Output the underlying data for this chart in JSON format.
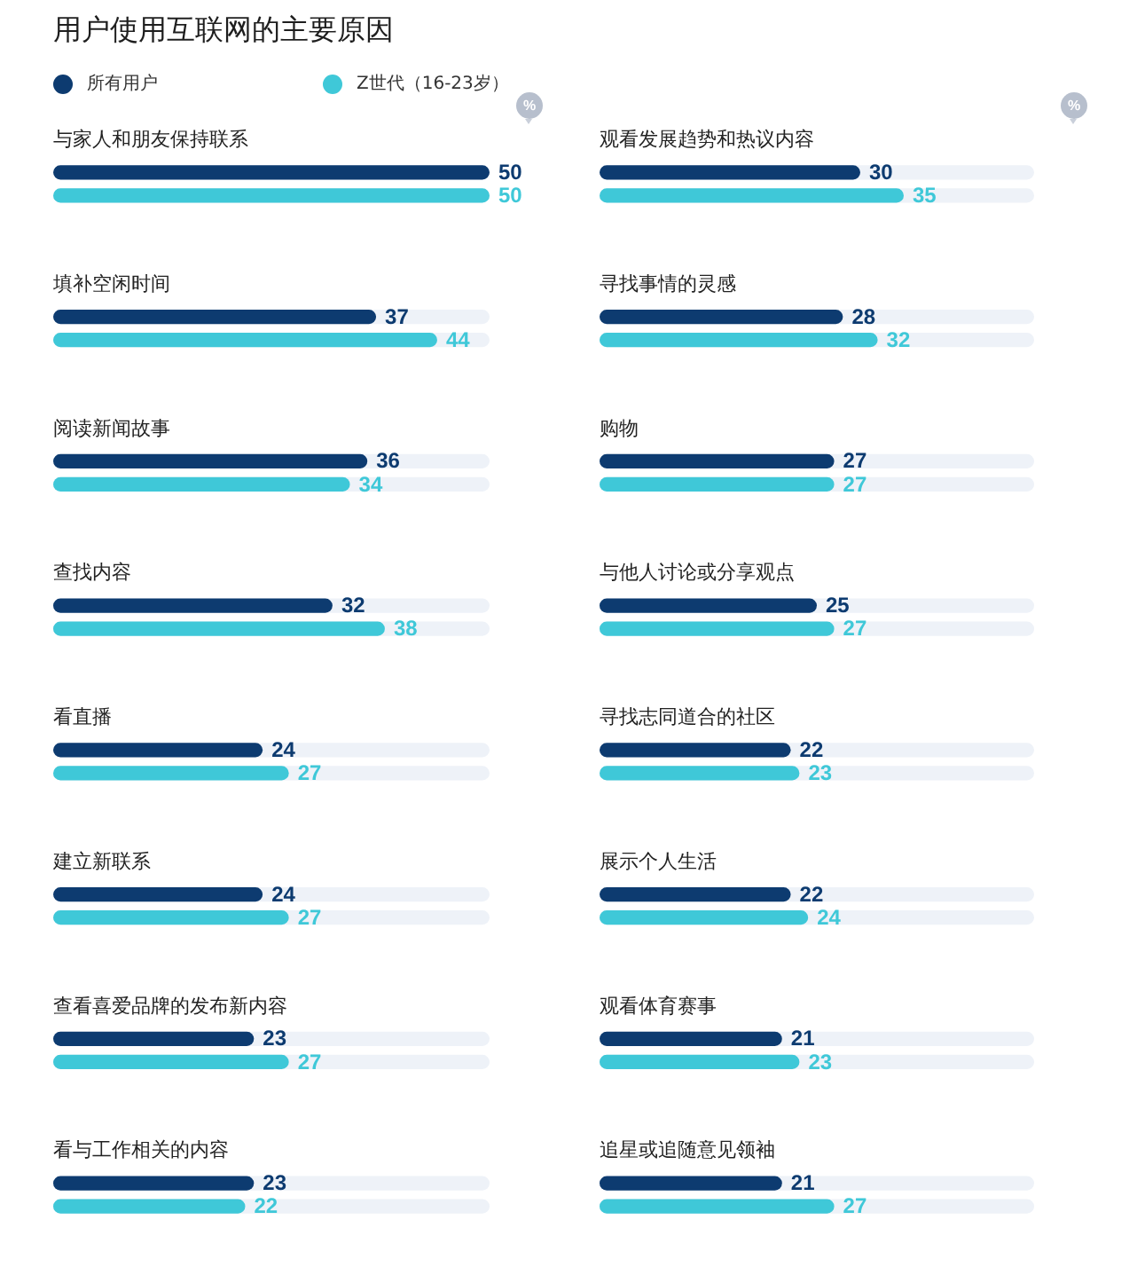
{
  "chart_data": [
    {
      "type": "bar",
      "orientation": "horizontal",
      "title": "用户使用互联网的主要原因",
      "categories": [
        "与家人和朋友保持联系",
        "填补空闲时间",
        "阅读新闻故事",
        "查找内容",
        "看直播",
        "建立新联系",
        "查看喜爱品牌的发布新内容",
        "看与工作相关的内容"
      ],
      "series": [
        {
          "name": "所有用户",
          "color": "#0d3b70",
          "values": [
            50,
            37,
            36,
            32,
            24,
            24,
            23,
            23
          ]
        },
        {
          "name": "Z世代（16-23岁）",
          "color": "#3fc8d8",
          "values": [
            50,
            44,
            34,
            38,
            27,
            27,
            27,
            22
          ]
        }
      ],
      "xlim": [
        0,
        50
      ],
      "data_labels": true,
      "legend": "top left",
      "tick_labels": "y",
      "annotations": [
        "%"
      ]
    },
    {
      "type": "bar",
      "orientation": "horizontal",
      "categories": [
        "观看发展趋势和热议内容",
        "寻找事情的灵感",
        "购物",
        "与他人讨论或分享观点",
        "寻找志同道合的社区",
        "展示个人生活",
        "观看体育赛事",
        "追星或追随意见领袖"
      ],
      "series": [
        {
          "color": "#0d3b70",
          "values": [
            30,
            28,
            27,
            25,
            22,
            22,
            21,
            21
          ]
        },
        {
          "color": "#3fc8d8",
          "values": [
            35,
            32,
            27,
            27,
            23,
            24,
            23,
            27
          ]
        }
      ],
      "xlim": [
        0,
        50
      ],
      "data_labels": true,
      "tick_labels": "y",
      "annotations": [
        "%"
      ]
    }
  ]
}
